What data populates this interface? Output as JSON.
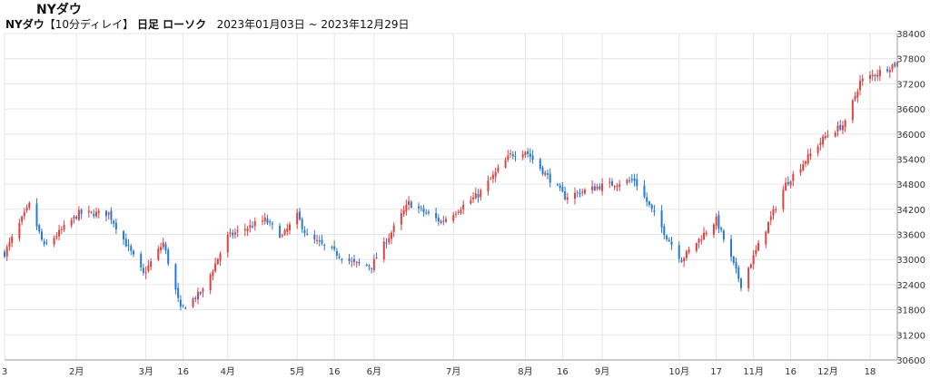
{
  "page_title": "NYダウ",
  "subtitle": {
    "instrument": "NYダウ",
    "delay": "【10分ディレイ】",
    "chart_kind": "日足 ローソク",
    "range": "2023年01月03日 ~ 2023年12月29日"
  },
  "colors": {
    "up": "#e04040",
    "down": "#2878d8",
    "grid": "#e6e6e6",
    "axis": "#999999"
  },
  "chart_data": {
    "type": "candlestick",
    "ylim": [
      30600,
      38400
    ],
    "y_ticks": [
      30600,
      31200,
      31800,
      32400,
      33000,
      33600,
      34200,
      34800,
      35400,
      36000,
      36600,
      37200,
      37800,
      38400
    ],
    "x_tick_labels": [
      {
        "date": "2023-01-03",
        "label": "3"
      },
      {
        "date": "2023-02-01",
        "label": "2月"
      },
      {
        "date": "2023-03-01",
        "label": "3月"
      },
      {
        "date": "2023-03-16",
        "label": "16"
      },
      {
        "date": "2023-04-03",
        "label": "4月"
      },
      {
        "date": "2023-05-01",
        "label": "5月"
      },
      {
        "date": "2023-05-16",
        "label": "16"
      },
      {
        "date": "2023-06-01",
        "label": "6月"
      },
      {
        "date": "2023-07-03",
        "label": "7月"
      },
      {
        "date": "2023-08-01",
        "label": "8月"
      },
      {
        "date": "2023-08-16",
        "label": "16"
      },
      {
        "date": "2023-09-01",
        "label": "9月"
      },
      {
        "date": "2023-10-02",
        "label": "10月"
      },
      {
        "date": "2023-10-17",
        "label": "17"
      },
      {
        "date": "2023-11-01",
        "label": "11月"
      },
      {
        "date": "2023-11-16",
        "label": "16"
      },
      {
        "date": "2023-12-01",
        "label": "12月"
      },
      {
        "date": "2023-12-18",
        "label": "18"
      }
    ],
    "series_close_points": [
      {
        "date": "2023-01-03",
        "close": 33150
      },
      {
        "date": "2023-01-13",
        "close": 34300
      },
      {
        "date": "2023-01-19",
        "close": 33300
      },
      {
        "date": "2023-02-02",
        "close": 34100
      },
      {
        "date": "2023-02-14",
        "close": 34100
      },
      {
        "date": "2023-02-28",
        "close": 32650
      },
      {
        "date": "2023-03-08",
        "close": 33400
      },
      {
        "date": "2023-03-15",
        "close": 31800
      },
      {
        "date": "2023-03-24",
        "close": 32250
      },
      {
        "date": "2023-04-03",
        "close": 33550
      },
      {
        "date": "2023-04-18",
        "close": 33950
      },
      {
        "date": "2023-04-25",
        "close": 33550
      },
      {
        "date": "2023-05-01",
        "close": 34050
      },
      {
        "date": "2023-05-05",
        "close": 33550
      },
      {
        "date": "2023-05-24",
        "close": 32900
      },
      {
        "date": "2023-05-31",
        "close": 32850
      },
      {
        "date": "2023-06-15",
        "close": 34350
      },
      {
        "date": "2023-06-28",
        "close": 33900
      },
      {
        "date": "2023-07-13",
        "close": 34550
      },
      {
        "date": "2023-07-26",
        "close": 35500
      },
      {
        "date": "2023-08-01",
        "close": 35600
      },
      {
        "date": "2023-08-17",
        "close": 34500
      },
      {
        "date": "2023-08-31",
        "close": 34750
      },
      {
        "date": "2023-09-14",
        "close": 34900
      },
      {
        "date": "2023-09-27",
        "close": 33550
      },
      {
        "date": "2023-10-03",
        "close": 33000
      },
      {
        "date": "2023-10-17",
        "close": 33950
      },
      {
        "date": "2023-10-27",
        "close": 32400
      },
      {
        "date": "2023-11-14",
        "close": 34800
      },
      {
        "date": "2023-11-30",
        "close": 35950
      },
      {
        "date": "2023-12-08",
        "close": 36250
      },
      {
        "date": "2023-12-14",
        "close": 37250
      },
      {
        "date": "2023-12-29",
        "close": 37700
      }
    ]
  }
}
